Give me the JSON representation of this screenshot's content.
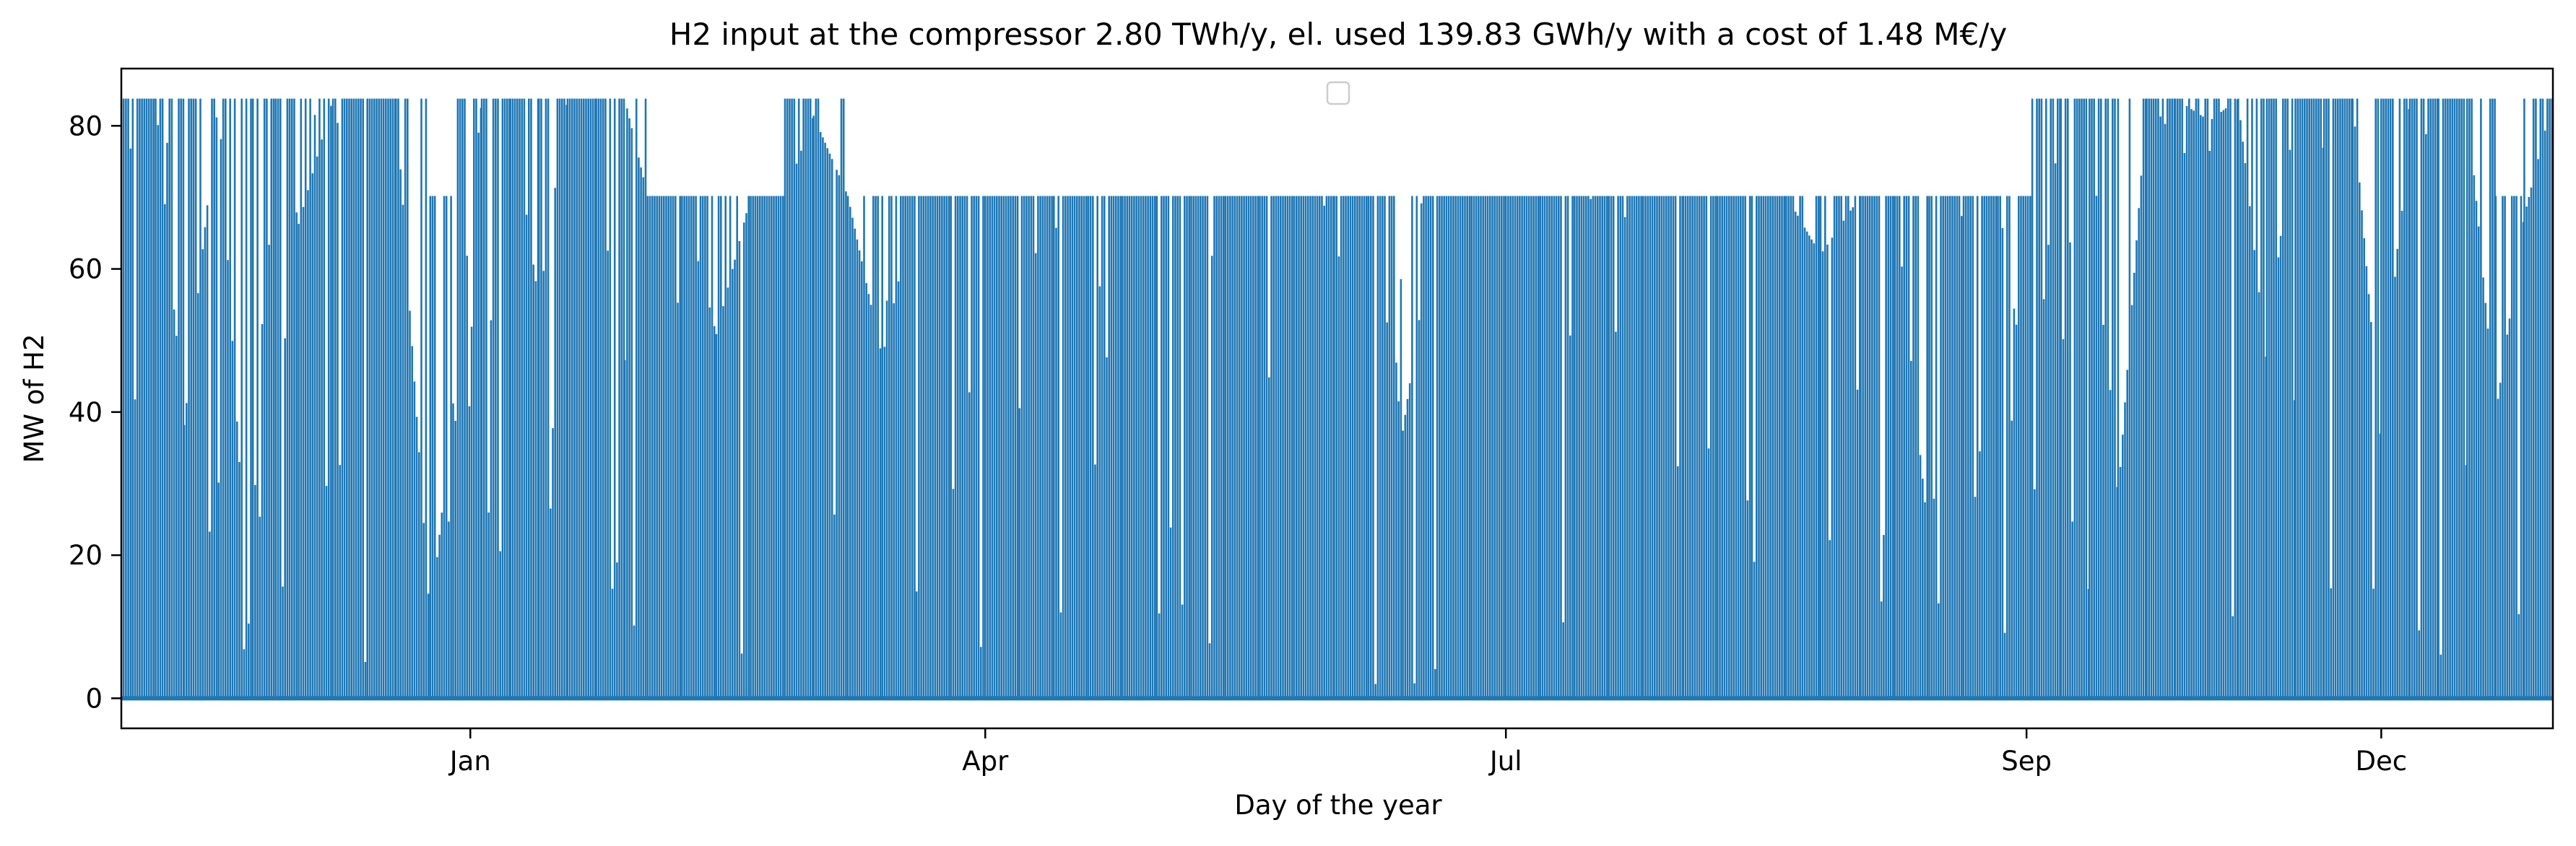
{
  "chart_data": {
    "type": "line",
    "title": "H2 input at the compressor 2.80 TWh/y, el. used 139.83 GWh/y with a cost of 1.48 M€/y",
    "xlabel": "Day of the year",
    "ylabel": "MW of H2",
    "xlim": [
      "2017-11-01",
      "2018-12-31"
    ],
    "ylim": [
      -4.2,
      88
    ],
    "x_ticks": [
      {
        "value": "2018-01-01",
        "label": "Jan"
      },
      {
        "value": "2018-04-01",
        "label": "Apr"
      },
      {
        "value": "2018-07-01",
        "label": "Jul"
      },
      {
        "value": "2018-09-30",
        "label": "Sep"
      },
      {
        "value": "2018-12-01",
        "label": "Dec"
      }
    ],
    "y_ticks": [
      0,
      20,
      40,
      60,
      80
    ],
    "grid": false,
    "legend": {
      "position": "upper center",
      "entries": []
    },
    "color": "#1f77b4",
    "series": [
      {
        "x": [
          "2017-11-01",
          "2017-11-03",
          "2017-11-07",
          "2017-11-12",
          "2017-11-18",
          "2017-11-24",
          "2017-11-28",
          "2017-12-02",
          "2017-12-08",
          "2017-12-14",
          "2017-12-19",
          "2017-12-25",
          "2017-12-29",
          "2018-01-03",
          "2018-01-08",
          "2018-01-13",
          "2018-01-18",
          "2018-01-23",
          "2018-01-28",
          "2018-02-01",
          "2018-02-07",
          "2018-02-13",
          "2018-02-19",
          "2018-02-25",
          "2018-03-02",
          "2018-03-08",
          "2018-03-14",
          "2018-03-20",
          "2018-03-26",
          "2018-04-01",
          "2018-04-07",
          "2018-04-13",
          "2018-04-19",
          "2018-04-25",
          "2018-05-01",
          "2018-05-07",
          "2018-05-13",
          "2018-05-19",
          "2018-05-25",
          "2018-06-01",
          "2018-06-07",
          "2018-06-13",
          "2018-06-19",
          "2018-06-25",
          "2018-07-01",
          "2018-07-07",
          "2018-07-13",
          "2018-07-19",
          "2018-07-25",
          "2018-08-01",
          "2018-08-07",
          "2018-08-13",
          "2018-08-19",
          "2018-08-25",
          "2018-09-01",
          "2018-09-07",
          "2018-09-13",
          "2018-09-19",
          "2018-09-25",
          "2018-10-01",
          "2018-10-06",
          "2018-10-11",
          "2018-10-16",
          "2018-10-21",
          "2018-10-26",
          "2018-11-01",
          "2018-11-06",
          "2018-11-11",
          "2018-11-16",
          "2018-11-21",
          "2018-11-26",
          "2018-12-01",
          "2018-12-06",
          "2018-12-11",
          "2018-12-16",
          "2018-12-21",
          "2018-12-26",
          "2018-12-31"
        ],
        "y": [
          47.5,
          83.8,
          83.8,
          38.2,
          83.8,
          0,
          83.8,
          66.3,
          83.8,
          83.8,
          83.8,
          10.4,
          41.2,
          83.8,
          83.8,
          55.1,
          83.8,
          83.8,
          83.8,
          70.2,
          70.2,
          50.9,
          70.2,
          70.2,
          81.4,
          70.2,
          47.6,
          70.2,
          70.2,
          70.2,
          70.2,
          70.2,
          70.2,
          70.2,
          70.2,
          70.2,
          70.2,
          70.2,
          70.2,
          70.2,
          70.2,
          37.4,
          70.2,
          70.2,
          70.2,
          70.2,
          70.2,
          70.2,
          70.2,
          70.2,
          70.2,
          70.2,
          70.2,
          62.0,
          70.2,
          70.2,
          21.3,
          70.2,
          70.2,
          36.8,
          83.8,
          83.8,
          27.8,
          83.8,
          83.8,
          80.7,
          83.8,
          46.6,
          83.8,
          83.8,
          83.8,
          35.5,
          83.8,
          83.8,
          83.8,
          39.6,
          67.4,
          83.8
        ]
      }
    ]
  }
}
